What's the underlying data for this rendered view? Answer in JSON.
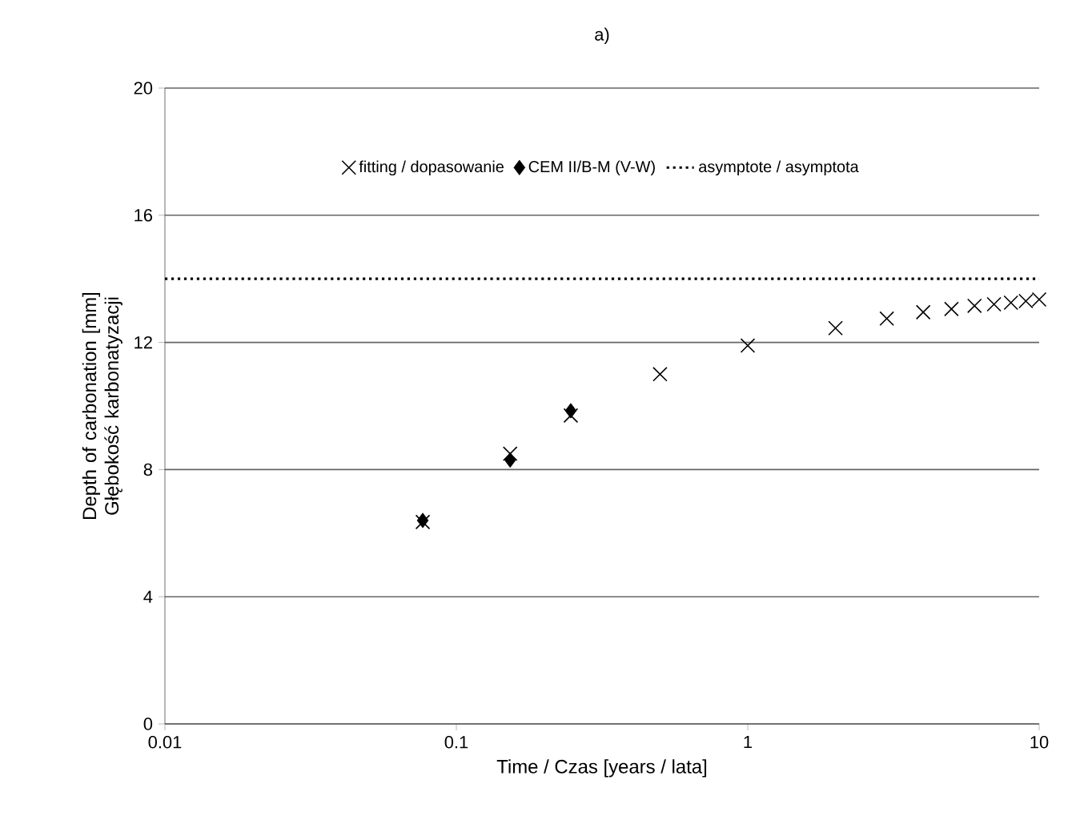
{
  "chart_data": {
    "type": "scatter",
    "title": "a)",
    "xlabel": "Time / Czas [years / lata]",
    "ylabel": "Depth of carbonation [mm] Głębokość karbonatyzacji",
    "log": "x",
    "xlim": [
      0.01,
      10
    ],
    "xticks": [
      0.01,
      0.1,
      1,
      10
    ],
    "ylim": [
      0,
      20
    ],
    "yticks": [
      0,
      4,
      8,
      12,
      16,
      20
    ],
    "grid": "y",
    "legend": "top",
    "series": [
      {
        "name": "fitting / dopasowanie",
        "type": "scatter",
        "marker": "cross",
        "color": "#000000",
        "x": [
          0.0767,
          0.153,
          0.247,
          0.5,
          1,
          2,
          3,
          4,
          5,
          6,
          7,
          8,
          9,
          10
        ],
        "values": [
          6.35,
          8.5,
          9.7,
          11.0,
          11.9,
          12.45,
          12.75,
          12.95,
          13.05,
          13.15,
          13.2,
          13.25,
          13.3,
          13.35
        ]
      },
      {
        "name": "CEM II/B-M (V-W)",
        "type": "scatter",
        "marker": "diamond",
        "color": "#000000",
        "x": [
          0.0767,
          0.153,
          0.247
        ],
        "values": [
          6.4,
          8.3,
          9.85
        ]
      },
      {
        "name": "asymptote / asymptota",
        "type": "line",
        "line_style": "dotted",
        "marker": "none",
        "color": "#000000",
        "x": [
          0.01,
          10
        ],
        "values": [
          14,
          14
        ]
      }
    ]
  }
}
